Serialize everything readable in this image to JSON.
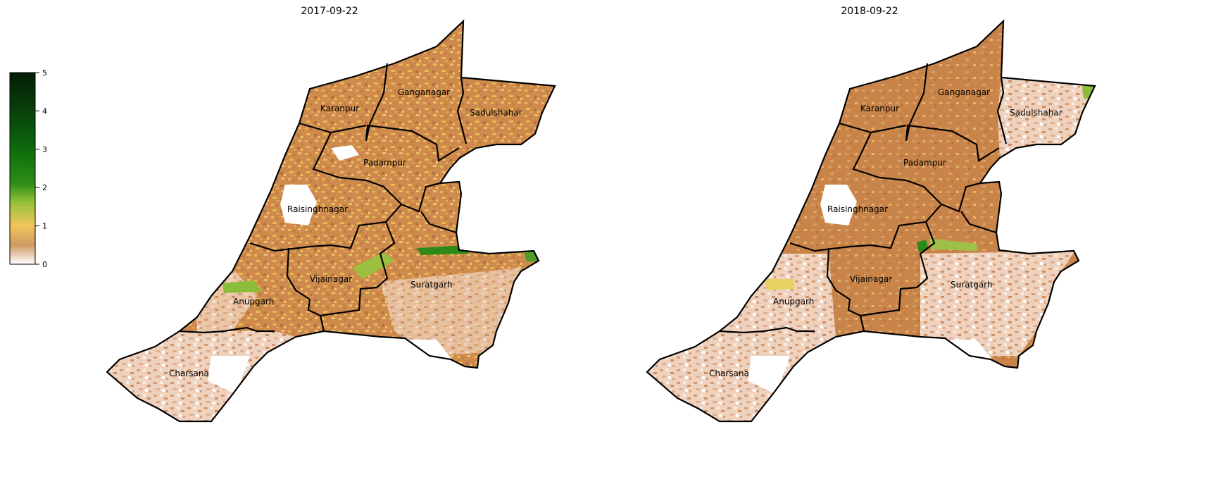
{
  "panels": [
    {
      "title": "2017-09-22",
      "labels": [
        "Karanpur",
        "Ganganagar",
        "Sadulshahar",
        "Padampur",
        "Raisinghnagar",
        "Vijainagar",
        "Suratgarh",
        "Anupgarh",
        "Charsana"
      ]
    },
    {
      "title": "2018-09-22",
      "labels": [
        "Karanpur",
        "Ganganagar",
        "Sadulshahar",
        "Padampur",
        "Raisinghnagar",
        "Vijainagar",
        "Suratgarh",
        "Anupgarh",
        "Charsana"
      ]
    }
  ],
  "colorbar": {
    "min": 0,
    "max": 5,
    "ticks": [
      "0",
      "1",
      "2",
      "3",
      "4",
      "5"
    ],
    "stops": [
      {
        "value": 0,
        "color": "#ffffff"
      },
      {
        "value": 0.5,
        "color": "#cf9a62"
      },
      {
        "value": 1,
        "color": "#f1c55a"
      },
      {
        "value": 1.6,
        "color": "#98c23a"
      },
      {
        "value": 2.1,
        "color": "#2e8e18"
      },
      {
        "value": 3,
        "color": "#0d6b0c"
      },
      {
        "value": 4,
        "color": "#07400a"
      },
      {
        "value": 5,
        "color": "#031d05"
      }
    ]
  },
  "colors": {
    "low": "#f0d3bf",
    "mid": "#cf8a4d",
    "high": "#e8b950",
    "green": "#2d8a18",
    "border": "#000000",
    "white": "#ffffff"
  }
}
